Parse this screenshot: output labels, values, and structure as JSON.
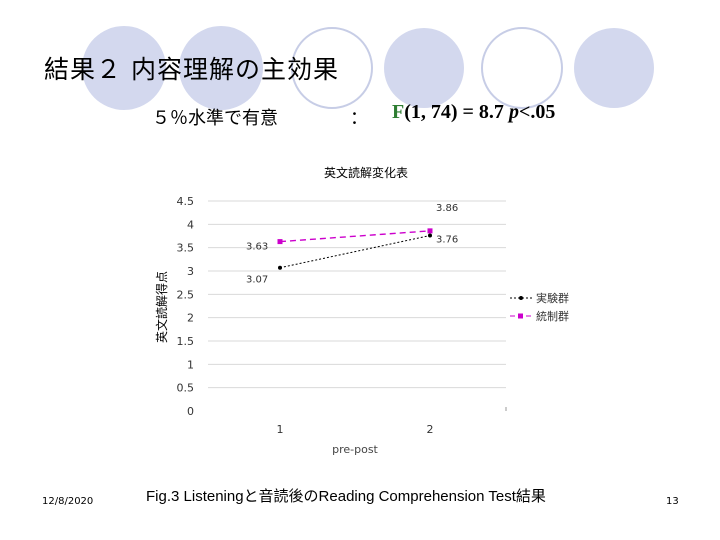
{
  "slide": {
    "title": "結果２ 内容理解の主効果",
    "subtitle": "５％水準で有意",
    "separator": "：",
    "stat": {
      "F": "F",
      "args": "(1, 74) = 8.7 ",
      "p": "p",
      "rest": "<.05"
    },
    "caption": "Fig.3 Listeningと音読後のReading Comprehension Test結果",
    "date": "12/8/2020",
    "page_number": "13"
  },
  "theme": {
    "circle_fill": "#d3d8ee",
    "circle_ring": "#c7cde6",
    "stat_color": "#2e7d32",
    "series1_color": "#000000",
    "series2_color": "#cc00cc"
  },
  "chart_data": {
    "type": "line",
    "title": "英文読解変化表",
    "xlabel": "pre-post",
    "ylabel": "英文読解得点",
    "categories": [
      "1",
      "2"
    ],
    "yticks": [
      "4.5",
      "4",
      "3.5",
      "3",
      "2.5",
      "2",
      "1.5",
      "1",
      "0.5",
      "0"
    ],
    "ylim": [
      0,
      4.5
    ],
    "legend_position": "right",
    "grid": true,
    "series": [
      {
        "name": "実験群",
        "values": [
          3.07,
          3.76
        ],
        "labels": [
          "3.07",
          "3.76"
        ]
      },
      {
        "name": "統制群",
        "values": [
          3.63,
          3.86
        ],
        "labels": [
          "3.63",
          "3.86"
        ]
      }
    ]
  }
}
